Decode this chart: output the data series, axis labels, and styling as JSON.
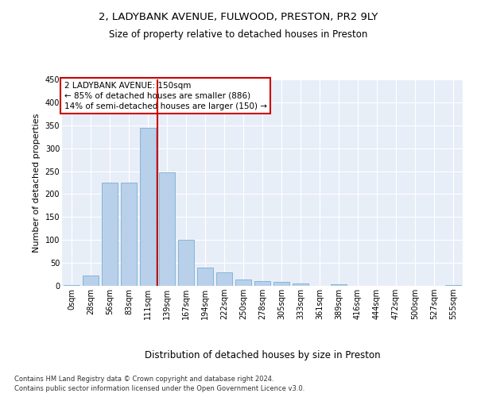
{
  "title1": "2, LADYBANK AVENUE, FULWOOD, PRESTON, PR2 9LY",
  "title2": "Size of property relative to detached houses in Preston",
  "xlabel": "Distribution of detached houses by size in Preston",
  "ylabel": "Number of detached properties",
  "bins": [
    "0sqm",
    "28sqm",
    "56sqm",
    "83sqm",
    "111sqm",
    "139sqm",
    "167sqm",
    "194sqm",
    "222sqm",
    "250sqm",
    "278sqm",
    "305sqm",
    "333sqm",
    "361sqm",
    "389sqm",
    "416sqm",
    "444sqm",
    "472sqm",
    "500sqm",
    "527sqm",
    "555sqm"
  ],
  "values": [
    2,
    22,
    225,
    225,
    345,
    247,
    100,
    40,
    30,
    14,
    10,
    8,
    5,
    0,
    4,
    0,
    0,
    0,
    0,
    0,
    2
  ],
  "bar_color": "#b8d0ea",
  "bar_edge_color": "#7aafd4",
  "annotation_title": "2 LADYBANK AVENUE: 150sqm",
  "annotation_line1": "← 85% of detached houses are smaller (886)",
  "annotation_line2": "14% of semi-detached houses are larger (150) →",
  "annotation_box_color": "#ffffff",
  "annotation_box_edge": "#cc0000",
  "vline_color": "#cc0000",
  "footer1": "Contains HM Land Registry data © Crown copyright and database right 2024.",
  "footer2": "Contains public sector information licensed under the Open Government Licence v3.0.",
  "ylim": [
    0,
    450
  ],
  "yticks": [
    0,
    50,
    100,
    150,
    200,
    250,
    300,
    350,
    400,
    450
  ],
  "plot_bg_color": "#e8eef8",
  "title1_fontsize": 9.5,
  "title2_fontsize": 8.5,
  "ylabel_fontsize": 8,
  "xlabel_fontsize": 8.5,
  "tick_fontsize": 7,
  "footer_fontsize": 6,
  "ann_fontsize": 7.5
}
